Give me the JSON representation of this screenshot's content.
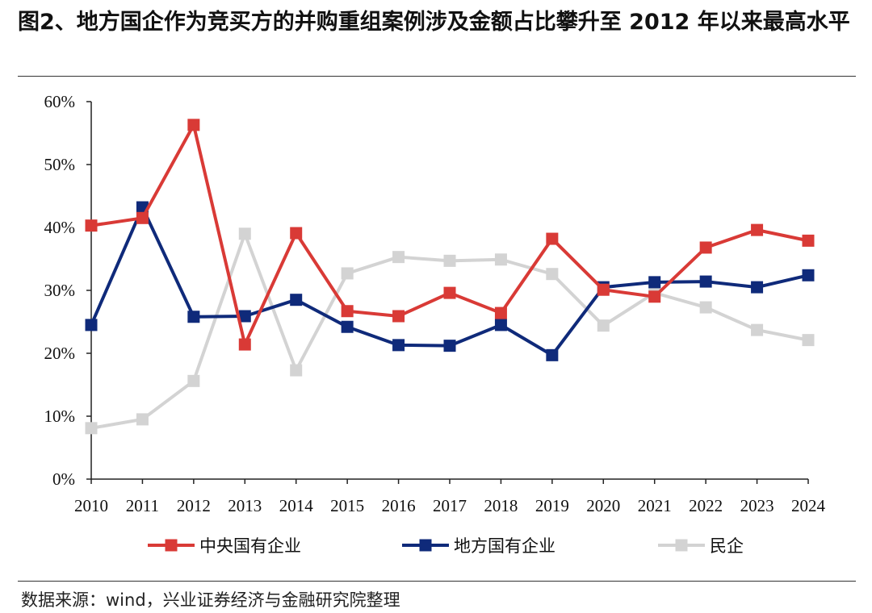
{
  "title": "图2、地方国企作为竞买方的并购重组案例涉及金额占比攀升至 2012 年以来最高水平",
  "source": "数据来源：wind，兴业证券经济与金融研究院整理",
  "chart_data": {
    "type": "line",
    "x": [
      "2010",
      "2011",
      "2012",
      "2013",
      "2014",
      "2015",
      "2016",
      "2017",
      "2018",
      "2019",
      "2020",
      "2021",
      "2022",
      "2023",
      "2024"
    ],
    "yticks": [
      "0%",
      "10%",
      "20%",
      "30%",
      "40%",
      "50%",
      "60%"
    ],
    "ylim": [
      0,
      60
    ],
    "grid": false,
    "legend_position": "bottom",
    "series": [
      {
        "name": "中央国有企业",
        "color": "#d93a36",
        "marker": "square",
        "values": [
          40.3,
          41.5,
          56.3,
          21.4,
          39.1,
          26.7,
          25.9,
          29.6,
          26.4,
          38.2,
          30.1,
          29.0,
          36.8,
          39.6,
          37.9
        ]
      },
      {
        "name": "地方国有企业",
        "color": "#0f2a7a",
        "marker": "square",
        "values": [
          24.5,
          43.2,
          25.8,
          25.9,
          28.5,
          24.2,
          21.3,
          21.2,
          24.5,
          19.7,
          30.5,
          31.3,
          31.4,
          30.5,
          32.4
        ]
      },
      {
        "name": "民企",
        "color": "#d3d3d3",
        "marker": "square",
        "values": [
          8.1,
          9.5,
          15.6,
          39.0,
          17.3,
          32.7,
          35.3,
          34.7,
          34.9,
          32.6,
          24.4,
          29.6,
          27.3,
          23.7,
          22.1
        ]
      }
    ]
  }
}
